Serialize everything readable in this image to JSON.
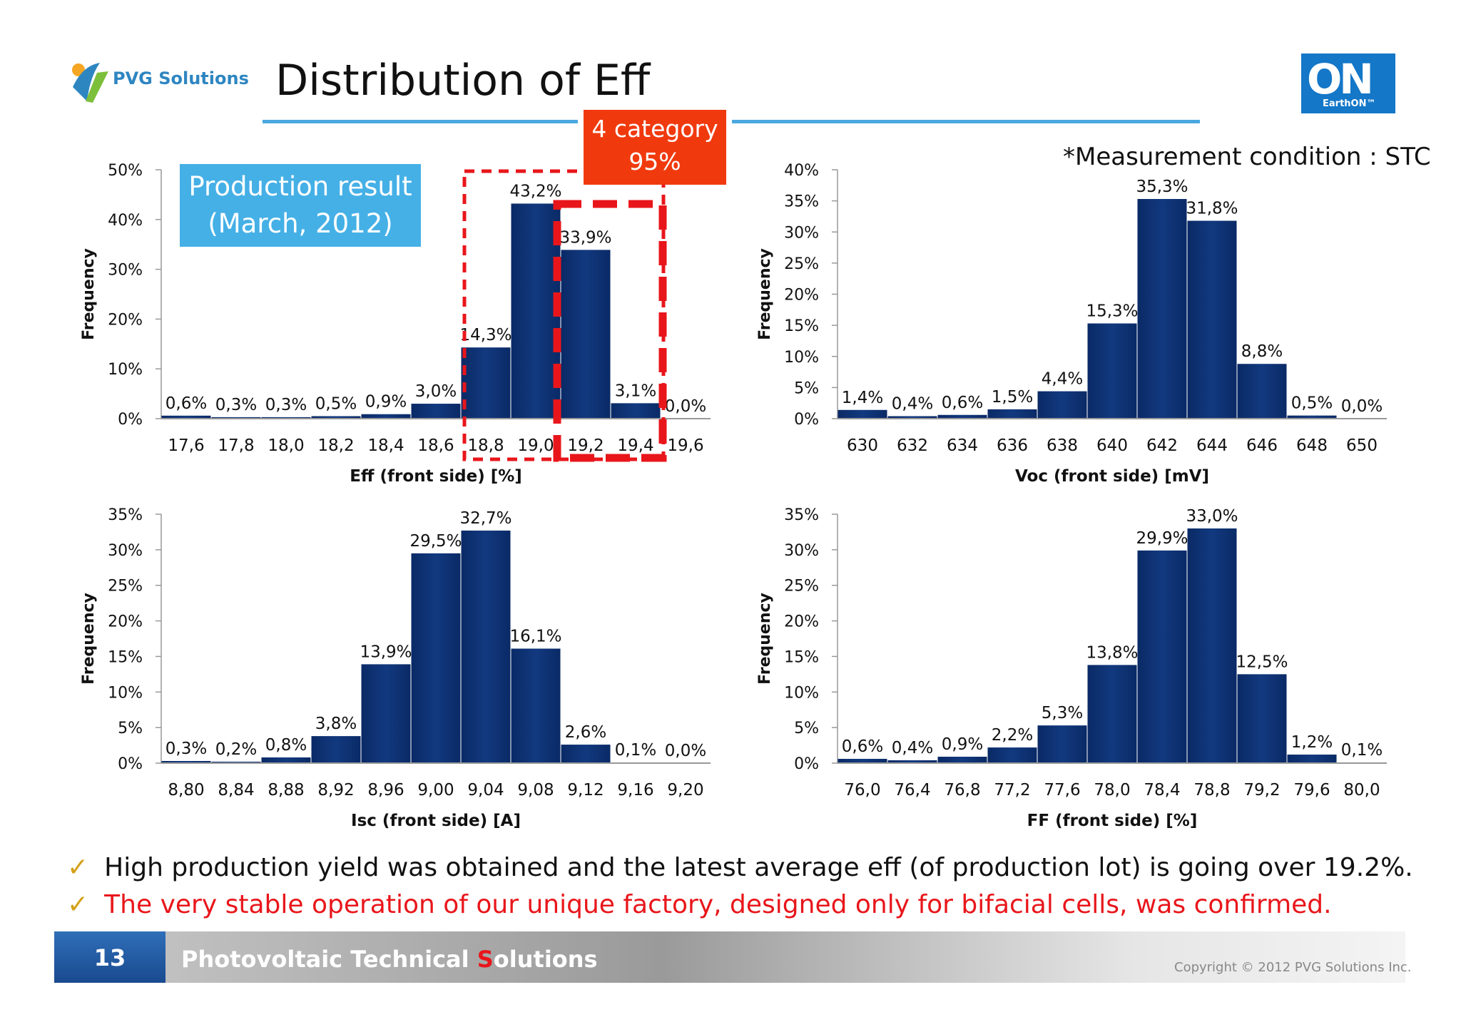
{
  "header": {
    "logo_text": "PVG Solutions",
    "title": "Distribution of Eff",
    "right_logo_letters": "ON",
    "right_logo_text": "EarthON™"
  },
  "callouts": {
    "category_line1": "4 category",
    "category_line2": "95%",
    "production_line1": "Production result",
    "production_line2": "(March, 2012)",
    "measurement_note": "*Measurement condition : STC"
  },
  "chart_data": [
    {
      "id": "eff",
      "type": "bar",
      "title": "",
      "xlabel": "Eff (front side) [%]",
      "ylabel": "Frequency",
      "ylim": [
        0,
        50
      ],
      "yticks": [
        "0%",
        "10%",
        "20%",
        "30%",
        "40%",
        "50%"
      ],
      "xticks": [
        "17,6",
        "17,8",
        "18,0",
        "18,2",
        "18,4",
        "18,6",
        "18,8",
        "19,0",
        "19,2",
        "19,4",
        "19,6"
      ],
      "values": [
        0.6,
        0.3,
        0.3,
        0.5,
        0.9,
        3.0,
        14.3,
        43.2,
        33.9,
        3.1,
        0.0
      ],
      "labels": [
        "0,6%",
        "0,3%",
        "0,3%",
        "0,5%",
        "0,9%",
        "3,0%",
        "14,3%",
        "43,2%",
        "33,9%",
        "3,1%",
        "0,0%"
      ],
      "bar_color": "#0d2f6e"
    },
    {
      "id": "voc",
      "type": "bar",
      "title": "",
      "xlabel": "Voc (front side) [mV]",
      "ylabel": "Frequency",
      "ylim": [
        0,
        40
      ],
      "yticks": [
        "0%",
        "5%",
        "10%",
        "15%",
        "20%",
        "25%",
        "30%",
        "35%",
        "40%"
      ],
      "xticks": [
        "630",
        "632",
        "634",
        "636",
        "638",
        "640",
        "642",
        "644",
        "646",
        "648",
        "650"
      ],
      "values": [
        1.4,
        0.4,
        0.6,
        1.5,
        4.4,
        15.3,
        35.3,
        31.8,
        8.8,
        0.5,
        0.0
      ],
      "labels": [
        "1,4%",
        "0,4%",
        "0,6%",
        "1,5%",
        "4,4%",
        "15,3%",
        "35,3%",
        "31,8%",
        "8,8%",
        "0,5%",
        "0,0%"
      ],
      "bar_color": "#0d2f6e"
    },
    {
      "id": "isc",
      "type": "bar",
      "title": "",
      "xlabel": "Isc (front side) [A]",
      "ylabel": "Frequency",
      "ylim": [
        0,
        35
      ],
      "yticks": [
        "0%",
        "5%",
        "10%",
        "15%",
        "20%",
        "25%",
        "30%",
        "35%"
      ],
      "xticks": [
        "8,80",
        "8,84",
        "8,88",
        "8,92",
        "8,96",
        "9,00",
        "9,04",
        "9,08",
        "9,12",
        "9,16",
        "9,20"
      ],
      "values": [
        0.3,
        0.2,
        0.8,
        3.8,
        13.9,
        29.5,
        32.7,
        16.1,
        2.6,
        0.1,
        0.0
      ],
      "labels": [
        "0,3%",
        "0,2%",
        "0,8%",
        "3,8%",
        "13,9%",
        "29,5%",
        "32,7%",
        "16,1%",
        "2,6%",
        "0,1%",
        "0,0%"
      ],
      "bar_color": "#0d2f6e"
    },
    {
      "id": "ff",
      "type": "bar",
      "title": "",
      "xlabel": "FF (front side) [%]",
      "ylabel": "Frequency",
      "ylim": [
        0,
        35
      ],
      "yticks": [
        "0%",
        "5%",
        "10%",
        "15%",
        "20%",
        "25%",
        "30%",
        "35%"
      ],
      "xticks": [
        "76,0",
        "76,4",
        "76,8",
        "77,2",
        "77,6",
        "78,0",
        "78,4",
        "78,8",
        "79,2",
        "79,6",
        "80,0"
      ],
      "values": [
        0.6,
        0.4,
        0.9,
        2.2,
        5.3,
        13.8,
        29.9,
        33.0,
        12.5,
        1.2,
        0.1
      ],
      "labels": [
        "0,6%",
        "0,4%",
        "0,9%",
        "2,2%",
        "5,3%",
        "13,8%",
        "29,9%",
        "33,0%",
        "12,5%",
        "1,2%",
        "0,1%"
      ],
      "bar_color": "#0d2f6e"
    }
  ],
  "bullets": [
    "High production yield was obtained and the latest average eff (of production lot) is going over 19.2%.",
    "The very stable operation of our unique factory, designed only for bifacial cells, was confirmed."
  ],
  "colors": {
    "accent_blue": "#4aa8e0",
    "highlight_red": "#e8161b",
    "category_orange": "#f03a0e",
    "bullet_check": "#d4a017"
  },
  "footer": {
    "page_number": "13",
    "title_prefix": "Photovoltaic Technical ",
    "title_s": "S",
    "title_suffix": "olutions",
    "copyright": "Copyright © 2012 PVG Solutions Inc."
  }
}
